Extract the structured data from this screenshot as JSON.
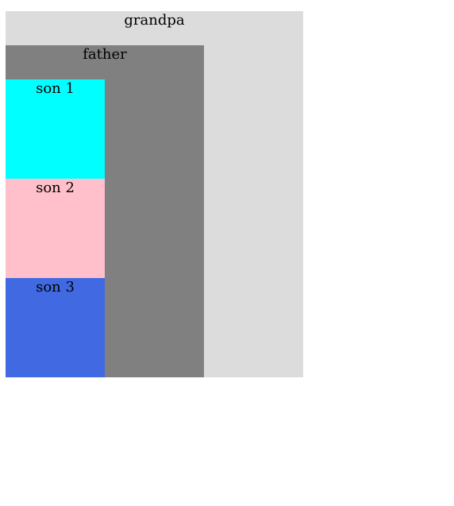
{
  "grandpa": {
    "label": "grandpa",
    "color": "#dcdcdc"
  },
  "father": {
    "label": "father",
    "color": "#808080"
  },
  "sons": [
    {
      "label": "son 1",
      "color": "#00ffff"
    },
    {
      "label": "son 2",
      "color": "#ffc0cb"
    },
    {
      "label": "son 3",
      "color": "#4169e1"
    }
  ]
}
